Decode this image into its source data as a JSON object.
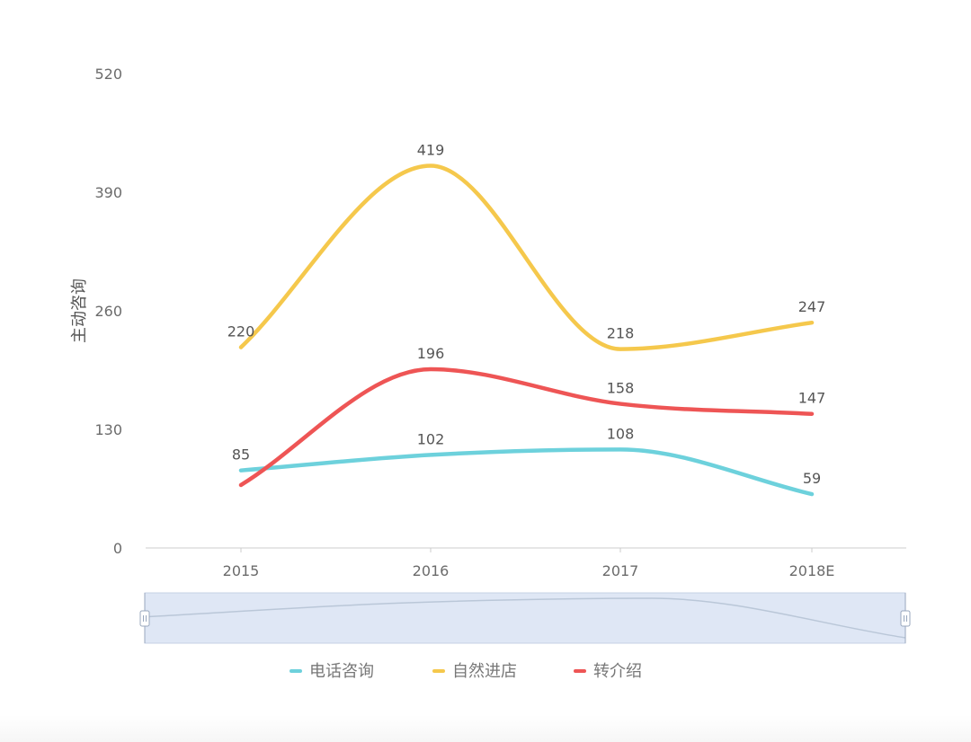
{
  "chart_data": {
    "type": "line",
    "smooth": true,
    "categories": [
      "2015",
      "2016",
      "2017",
      "2018E"
    ],
    "ylabel": "主动咨询",
    "ylim": [
      0,
      520
    ],
    "yticks": [
      0,
      130,
      260,
      390,
      520
    ],
    "grid": false,
    "legend_position": "bottom",
    "series": [
      {
        "name": "电话咨询",
        "values": [
          85,
          102,
          108,
          59
        ],
        "color": "#6dd1dc"
      },
      {
        "name": "自然进店",
        "values": [
          220,
          419,
          218,
          247
        ],
        "color": "#f5c84c"
      },
      {
        "name": "转介绍",
        "values": [
          69,
          196,
          158,
          147
        ],
        "color": "#ee5555"
      }
    ],
    "data_labels": [
      {
        "series": "电话咨询",
        "labels": [
          "85",
          "102",
          "108",
          "59"
        ]
      },
      {
        "series": "自然进店",
        "labels": [
          "220",
          "419",
          "218",
          "247"
        ]
      },
      {
        "series": "转介绍",
        "labels": [
          null,
          "196",
          "158",
          "147"
        ]
      }
    ],
    "data_zoom": {
      "visible": true,
      "range": [
        0,
        100
      ]
    }
  }
}
